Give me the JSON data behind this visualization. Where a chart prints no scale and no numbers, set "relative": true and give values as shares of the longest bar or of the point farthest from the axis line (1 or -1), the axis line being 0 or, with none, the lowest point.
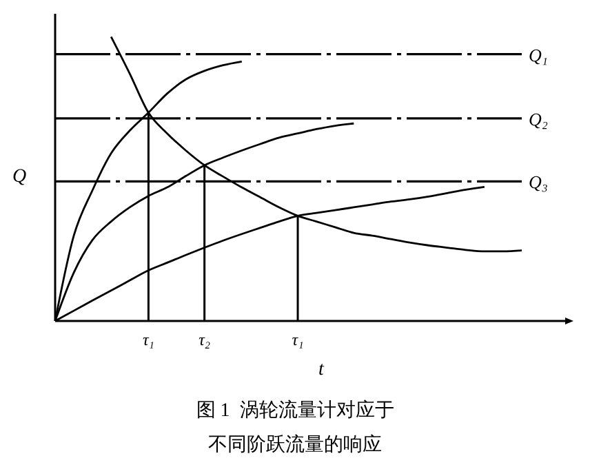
{
  "chart_data": {
    "type": "line",
    "relative": true,
    "xlabel": "t",
    "ylabel": "Q",
    "legend": false,
    "marker": "none",
    "categories": [
      null,
      null,
      null,
      null,
      null,
      "τ₁",
      null,
      null,
      "τ₂",
      null,
      null,
      null,
      null,
      "τ₁",
      null,
      null,
      null,
      null,
      null,
      null,
      null,
      null,
      null,
      null,
      null,
      null
    ],
    "series": [
      {
        "name": "Q₁",
        "color": "#000000",
        "line_style": "dashed",
        "values": [
          0.939,
          0.939,
          0.939,
          0.939,
          0.939,
          0.939,
          0.939,
          0.939,
          0.939,
          0.939,
          0.939,
          0.939,
          0.939,
          0.939,
          0.939,
          0.939,
          0.939,
          0.939,
          0.939,
          0.939,
          0.939,
          0.939,
          0.939,
          0.939,
          0.939,
          0.939
        ]
      },
      {
        "name": "Q₂",
        "color": "#000000",
        "line_style": "dashed",
        "values": [
          0.713,
          0.713,
          0.713,
          0.713,
          0.713,
          0.713,
          0.713,
          0.713,
          0.713,
          0.713,
          0.713,
          0.713,
          0.713,
          0.713,
          0.713,
          0.713,
          0.713,
          0.713,
          0.713,
          0.713,
          0.713,
          0.713,
          0.713,
          0.713,
          0.713,
          0.713
        ]
      },
      {
        "name": "Q₃",
        "color": "#000000",
        "line_style": "dashed",
        "values": [
          0.491,
          0.491,
          0.491,
          0.491,
          0.491,
          0.491,
          0.491,
          0.491,
          0.491,
          0.491,
          0.491,
          0.491,
          0.491,
          0.491,
          0.491,
          0.491,
          0.491,
          0.491,
          0.491,
          0.491,
          0.491,
          0.491,
          0.491,
          0.491,
          0.491,
          0.491
        ]
      },
      {
        "color": "#000000",
        "line_style": "solid",
        "values": [
          0,
          0.3,
          0.46,
          0.59,
          0.67,
          0.733,
          0.8,
          0.85,
          0.88,
          0.9,
          0.913,
          null,
          null,
          null,
          null,
          null,
          null,
          null,
          null,
          null,
          null,
          null,
          null,
          null,
          null,
          null
        ]
      },
      {
        "color": "#000000",
        "line_style": "solid",
        "values": [
          0,
          0.17,
          0.285,
          0.35,
          0.4,
          0.44,
          0.47,
          0.51,
          0.548,
          0.575,
          0.6,
          0.623,
          0.645,
          0.66,
          0.675,
          0.687,
          0.695,
          null,
          null,
          null,
          null,
          null,
          null,
          null,
          null,
          null
        ]
      },
      {
        "color": "#000000",
        "line_style": "solid",
        "values": [
          0,
          0.036,
          0.072,
          0.107,
          0.143,
          0.178,
          0.205,
          0.232,
          0.258,
          0.283,
          0.306,
          0.328,
          0.35,
          0.37,
          0.38,
          0.39,
          0.4,
          0.41,
          0.42,
          0.428,
          0.438,
          0.45,
          0.462,
          0.472,
          null,
          null
        ]
      },
      {
        "color": "#000000",
        "line_style": "solid",
        "values": [
          null,
          null,
          null,
          1,
          0.87,
          0.733,
          0.66,
          0.6,
          0.548,
          0.508,
          0.47,
          0.435,
          0.4,
          0.37,
          0.35,
          0.33,
          0.31,
          0.3,
          0.288,
          0.276,
          0.266,
          0.258,
          0.25,
          0.245,
          0.245,
          0.248
        ]
      },
      {
        "type": "bar",
        "color": "#000000",
        "values": [
          null,
          null,
          null,
          null,
          null,
          0.733,
          null,
          null,
          0.548,
          null,
          null,
          null,
          null,
          0.37,
          null,
          null,
          null,
          null,
          null,
          null,
          null,
          null,
          null,
          null,
          null,
          null
        ]
      }
    ],
    "annotations": [
      "图 1  涡轮流量计对应于",
      "不同阶跃流量的响应"
    ]
  }
}
